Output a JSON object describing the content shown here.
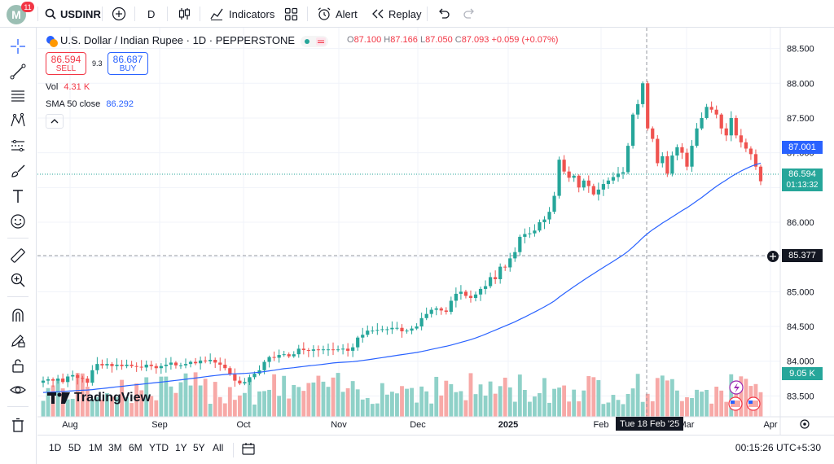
{
  "top_toolbar": {
    "avatar_letter": "M",
    "notification_count": "11",
    "symbol": "USDINR",
    "interval": "D",
    "indicators_label": "Indicators",
    "alert_label": "Alert",
    "replay_label": "Replay"
  },
  "left_toolbar": {
    "icons": [
      "crosshair-icon",
      "trend-line-icon",
      "fib-retracement-icon",
      "pattern-icon",
      "forecast-icon",
      "brush-icon",
      "text-icon",
      "emoji-icon",
      "ruler-icon",
      "zoom-in-icon",
      "magnet-icon",
      "lock-drawing-icon",
      "lock-icon",
      "eye-icon",
      "trash-icon"
    ]
  },
  "legend": {
    "title": "U.S. Dollar / Indian Rupee · 1D · PEPPERSTONE",
    "open_label": "O",
    "open": "87.100",
    "high_label": "H",
    "high": "87.166",
    "low_label": "L",
    "low": "87.050",
    "close_label": "C",
    "close": "87.093",
    "change": "+0.059 (+0.07%)",
    "sell_price": "86.594",
    "sell_label": "SELL",
    "spread": "9.3",
    "buy_price": "86.687",
    "buy_label": "BUY",
    "vol_label": "Vol",
    "vol_value": "4.31 K",
    "sma_label": "SMA 50 close",
    "sma_value": "86.292"
  },
  "price_scale": {
    "ticks": [
      "88.500",
      "88.000",
      "87.500",
      "87.000",
      "86.500",
      "86.000",
      "85.500",
      "85.000",
      "84.500",
      "84.000",
      "83.500"
    ],
    "sma_label": "87.001",
    "last_price": "86.594",
    "countdown": "01:13:32",
    "crosshair_price": "85.377",
    "volume_label": "9.05 K"
  },
  "time_scale": {
    "ticks": [
      "Aug",
      "Sep",
      "Oct",
      "Nov",
      "Dec",
      "2025",
      "Feb",
      "Mar",
      "Apr"
    ],
    "crosshair_date": "Tue 18 Feb '25"
  },
  "watermark": "TradingView",
  "bottom_bar": {
    "ranges": [
      "1D",
      "5D",
      "1M",
      "3M",
      "6M",
      "YTD",
      "1Y",
      "5Y",
      "All"
    ],
    "clock": "00:15:26 UTC+5:30"
  },
  "colors": {
    "up": "#26a69a",
    "down": "#ef5350",
    "sma": "#2962ff",
    "volume_up": "#8fd1c8",
    "volume_down": "#f7a9a7",
    "accent": "#2962ff"
  },
  "chart_data": {
    "type": "candlestick",
    "title": "U.S. Dollar / Indian Rupee · 1D · PEPPERSTONE",
    "ylim": [
      83.2,
      88.8
    ],
    "x_ticks": [
      "Aug",
      "Sep",
      "Oct",
      "Nov",
      "Dec",
      "2025",
      "Feb",
      "Mar",
      "Apr"
    ],
    "close_series": [
      83.72,
      83.74,
      83.72,
      83.75,
      83.7,
      83.78,
      83.8,
      83.76,
      83.75,
      83.69,
      83.87,
      83.96,
      83.94,
      83.96,
      83.93,
      83.95,
      83.93,
      83.95,
      83.93,
      83.92,
      83.91,
      83.95,
      83.93,
      83.9,
      83.93,
      83.95,
      83.98,
      83.94,
      83.94,
      83.96,
      83.99,
      83.97,
      84.01,
      84.0,
      84.02,
      83.98,
      83.95,
      83.9,
      83.81,
      83.72,
      83.68,
      83.7,
      83.77,
      83.82,
      83.87,
      83.99,
      84.06,
      84.05,
      84.09,
      84.1,
      84.07,
      84.1,
      84.18,
      84.16,
      84.15,
      84.17,
      84.16,
      84.17,
      84.17,
      84.16,
      84.17,
      84.18,
      84.15,
      84.2,
      84.34,
      84.38,
      84.44,
      84.44,
      84.45,
      84.46,
      84.46,
      84.48,
      84.48,
      84.43,
      84.44,
      84.47,
      84.5,
      84.62,
      84.68,
      84.74,
      84.76,
      84.73,
      84.71,
      84.87,
      84.97,
      85.0,
      84.94,
      84.91,
      84.96,
      85.04,
      85.08,
      85.21,
      85.18,
      85.36,
      85.35,
      85.48,
      85.57,
      85.79,
      85.83,
      85.84,
      85.88,
      86.0,
      86.04,
      86.15,
      86.38,
      86.9,
      86.73,
      86.64,
      86.67,
      86.5,
      86.6,
      86.52,
      86.4,
      86.47,
      86.55,
      86.6,
      86.65,
      86.7,
      86.72,
      87.1,
      87.55,
      87.7,
      88.0,
      87.35,
      87.2,
      86.85,
      86.95,
      86.7,
      86.96,
      87.08,
      87.0,
      86.8,
      87.1,
      87.35,
      87.5,
      87.66,
      87.62,
      87.55,
      87.35,
      87.25,
      87.5,
      87.25,
      87.15,
      87.06,
      86.98,
      86.8,
      86.59
    ],
    "sma50_start": 83.55,
    "sma50_end": 87.0,
    "volume_k_range": [
      0,
      10
    ],
    "last_price": 86.594,
    "sma_last": 87.001,
    "crosshair_price": 85.377
  }
}
